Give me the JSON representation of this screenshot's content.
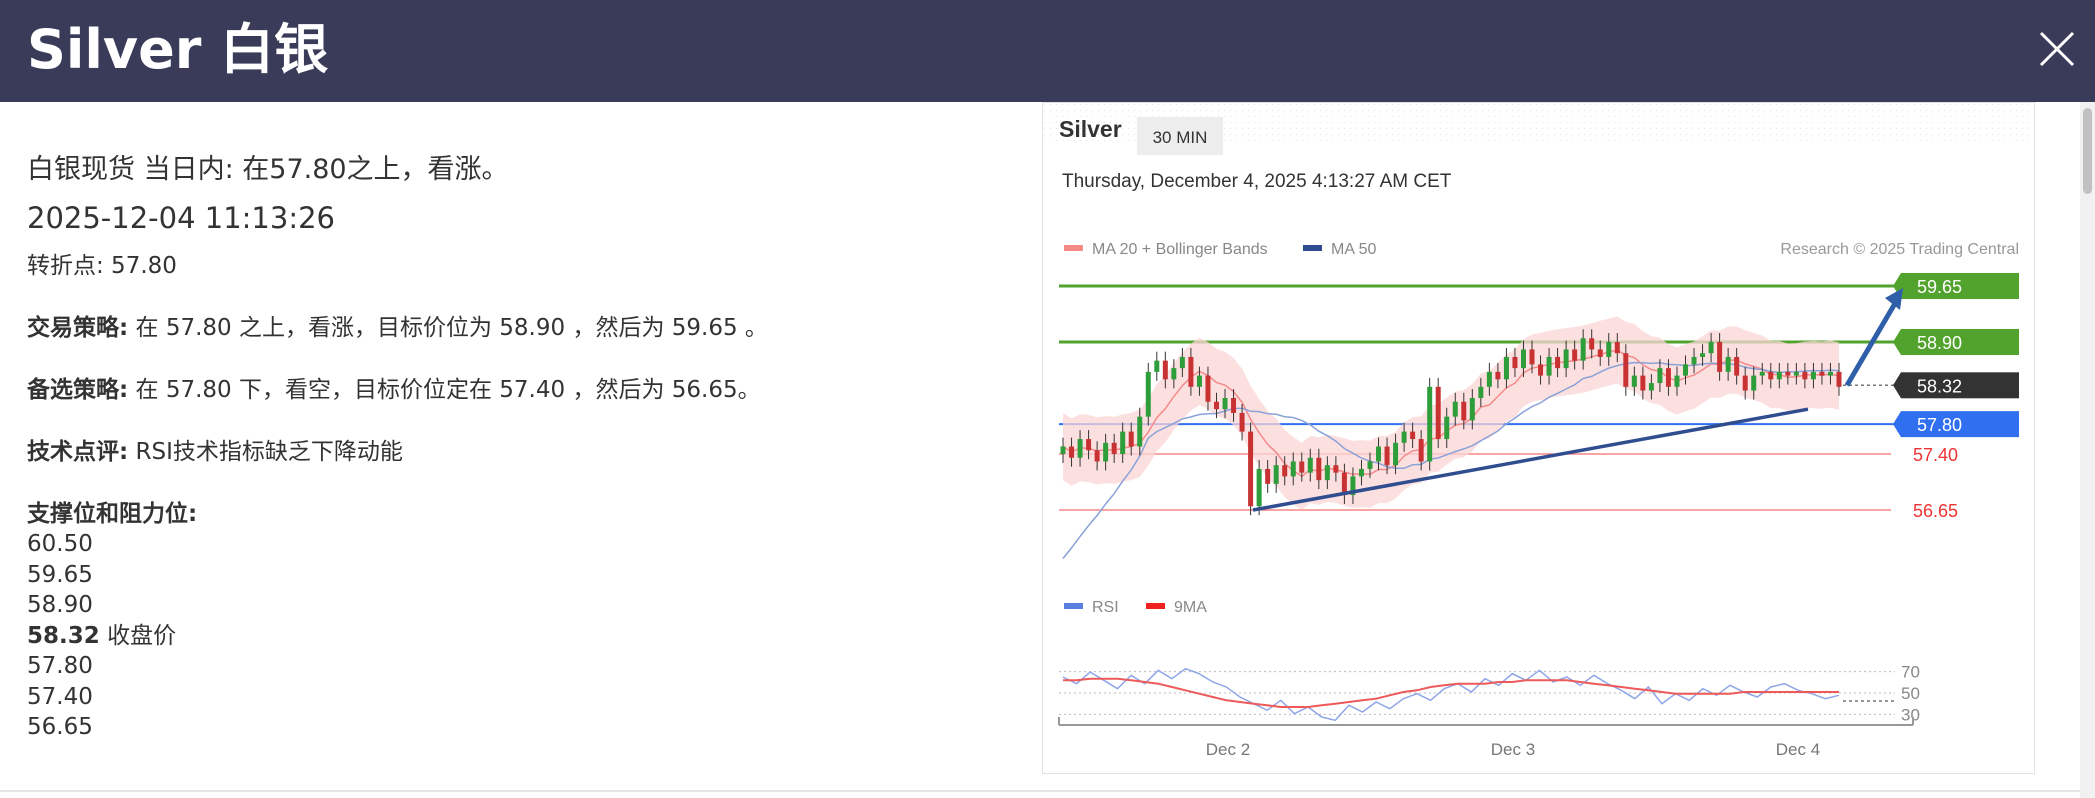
{
  "window": {
    "title": "Silver 白银",
    "close_icon": "close-icon"
  },
  "analysis": {
    "headline": "白银现货 当日内: 在57.80之上，看涨。",
    "timestamp": "2025-12-04 11:13:26",
    "pivot": "转折点: 57.80",
    "strategy_label": "交易策略:",
    "strategy_text": " 在 57.80 之上，看涨，目标价位为 58.90 ，然后为 59.65 。",
    "alternative_label": "备选策略:",
    "alternative_text": " 在 57.80 下，看空，目标价位定在 57.40 ，然后为 56.65。",
    "comment_label": "技术点评:",
    "comment_text": " RSI技术指标缺乏下降动能",
    "levels_title": "支撑位和阻力位:",
    "levels": [
      "60.50",
      "59.65",
      "58.90"
    ],
    "close_value": "58.32",
    "close_label": " 收盘价",
    "levels_below": [
      "57.80",
      "57.40",
      "56.65"
    ]
  },
  "chart_header": {
    "symbol": "Silver",
    "interval": "30 MIN",
    "datetime": "Thursday, December 4, 2025 4:13:27 AM CET",
    "legend_ma20": "MA 20 + Bollinger Bands",
    "legend_ma50": "MA 50",
    "copyright": "Research © 2025 Trading Central",
    "legend_rsi": "RSI",
    "legend_9ma": "9MA"
  },
  "chart_data": {
    "type": "line",
    "xlabel": "",
    "ylabel": "",
    "x_ticks": [
      "Dec 2",
      "Dec 3",
      "Dec 4"
    ],
    "ylim": [
      56.3,
      60.0
    ],
    "levels": [
      {
        "value": 59.65,
        "label": "59.65",
        "style": "resistance",
        "color": "#52a32e"
      },
      {
        "value": 58.9,
        "label": "58.90",
        "style": "resistance",
        "color": "#52a32e"
      },
      {
        "value": 58.32,
        "label": "58.32",
        "style": "last",
        "color": "#333333"
      },
      {
        "value": 57.8,
        "label": "57.80",
        "style": "pivot",
        "color": "#2f6ff0"
      },
      {
        "value": 57.4,
        "label": "57.40",
        "style": "support",
        "color": "#ee3333"
      },
      {
        "value": 56.65,
        "label": "56.65",
        "style": "support",
        "color": "#ee3333"
      }
    ],
    "price_series": [
      57.5,
      57.35,
      57.6,
      57.45,
      57.3,
      57.55,
      57.4,
      57.7,
      57.5,
      57.9,
      58.5,
      58.65,
      58.4,
      58.55,
      58.7,
      58.3,
      58.45,
      58.1,
      58.0,
      58.15,
      57.95,
      57.7,
      56.7,
      57.2,
      57.0,
      57.25,
      57.1,
      57.3,
      57.15,
      57.35,
      57.05,
      57.25,
      57.15,
      56.85,
      57.1,
      57.2,
      57.3,
      57.5,
      57.25,
      57.55,
      57.7,
      57.6,
      57.3,
      58.3,
      57.6,
      57.9,
      58.1,
      57.85,
      58.15,
      58.3,
      58.5,
      58.4,
      58.7,
      58.55,
      58.8,
      58.6,
      58.45,
      58.7,
      58.55,
      58.8,
      58.65,
      58.95,
      58.8,
      58.7,
      58.9,
      58.75,
      58.3,
      58.45,
      58.25,
      58.35,
      58.55,
      58.3,
      58.45,
      58.6,
      58.7,
      58.75,
      58.9,
      58.5,
      58.7,
      58.45,
      58.25,
      58.45,
      58.5,
      58.4,
      58.5,
      58.45,
      58.5,
      58.4,
      58.5,
      58.45,
      58.5,
      58.3
    ],
    "candles_x_range_note": "",
    "projection": {
      "from": 58.32,
      "to": 59.65
    },
    "trendline": {
      "from": 56.65,
      "to": 58.0
    },
    "rsi": {
      "levels": [
        70,
        50,
        30
      ],
      "rsi_series": [
        62,
        58,
        65,
        60,
        55,
        63,
        58,
        66,
        61,
        67,
        64,
        59,
        56,
        50,
        46,
        42,
        48,
        40,
        44,
        38,
        36,
        45,
        41,
        47,
        43,
        49,
        52,
        48,
        55,
        58,
        53,
        61,
        57,
        64,
        60,
        66,
        59,
        62,
        57,
        63,
        58,
        54,
        49,
        56,
        46,
        52,
        48,
        55,
        51,
        57,
        53,
        50,
        56,
        58,
        54,
        52,
        49,
        51
      ],
      "ma_series": [
        60,
        60,
        61,
        61,
        61,
        60,
        59,
        58,
        56,
        54,
        52,
        50,
        48,
        47,
        46,
        45,
        44,
        44,
        44,
        45,
        46,
        47,
        48,
        49,
        51,
        53,
        54,
        56,
        57,
        58,
        58,
        58,
        59,
        59,
        60,
        60,
        60,
        60,
        59,
        58,
        57,
        56,
        55,
        54,
        53,
        52,
        52,
        52,
        52,
        52,
        53,
        53,
        53,
        53,
        53,
        53,
        53,
        53
      ],
      "ylim": [
        20,
        80
      ]
    }
  }
}
